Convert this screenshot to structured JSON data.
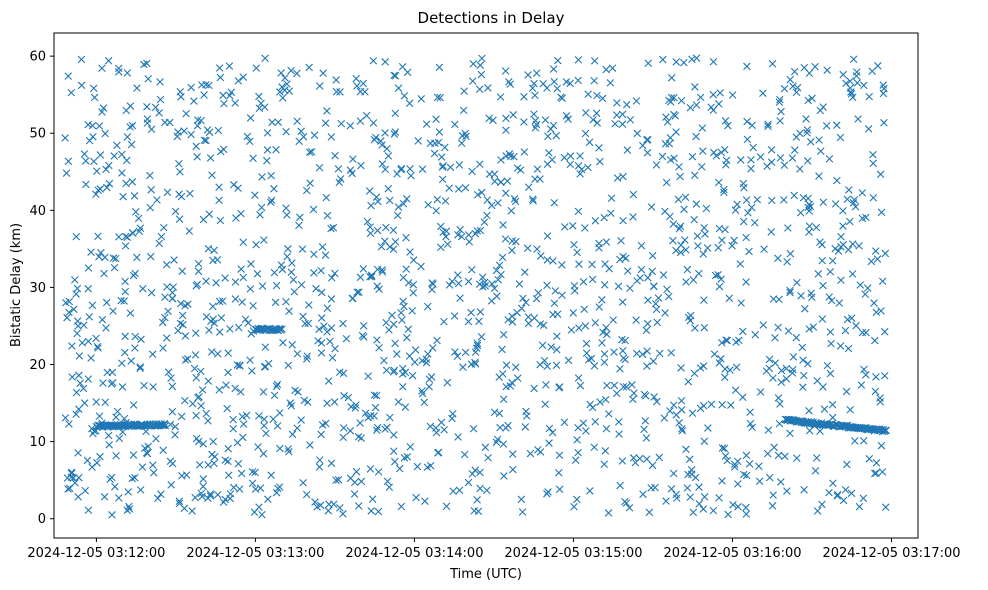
{
  "chart_data": {
    "type": "scatter",
    "title": "Detections in Delay",
    "xlabel": "Time (UTC)",
    "ylabel": "Bistatic Delay (km)",
    "x_ticks": [
      "2024-12-05 03:12:00",
      "2024-12-05 03:13:00",
      "2024-12-05 03:14:00",
      "2024-12-05 03:15:00",
      "2024-12-05 03:16:00",
      "2024-12-05 03:17:00"
    ],
    "y_ticks": [
      "0",
      "10",
      "20",
      "30",
      "40",
      "50",
      "60"
    ],
    "xlim": [
      "2024-12-05 03:11:44",
      "2024-12-05 03:17:10"
    ],
    "ylim": [
      -2.5,
      63.0
    ],
    "grid": false,
    "marker": "x",
    "color": "#1f77b4",
    "points": {
      "t_start": "2024-12-05 03:11:48",
      "t_end": "2024-12-05 03:16:58",
      "background_count": 1700,
      "track_segments": [
        {
          "from": "2024-12-05 03:12:00",
          "to": "2024-12-05 03:12:26",
          "delay_start": 12.0,
          "delay_end": 12.2,
          "count": 80
        },
        {
          "from": "2024-12-05 03:13:00",
          "to": "2024-12-05 03:13:10",
          "delay_start": 24.6,
          "delay_end": 24.5,
          "count": 30
        },
        {
          "from": "2024-12-05 03:16:20",
          "to": "2024-12-05 03:16:58",
          "delay_start": 12.8,
          "delay_end": 11.4,
          "count": 110
        }
      ]
    }
  }
}
